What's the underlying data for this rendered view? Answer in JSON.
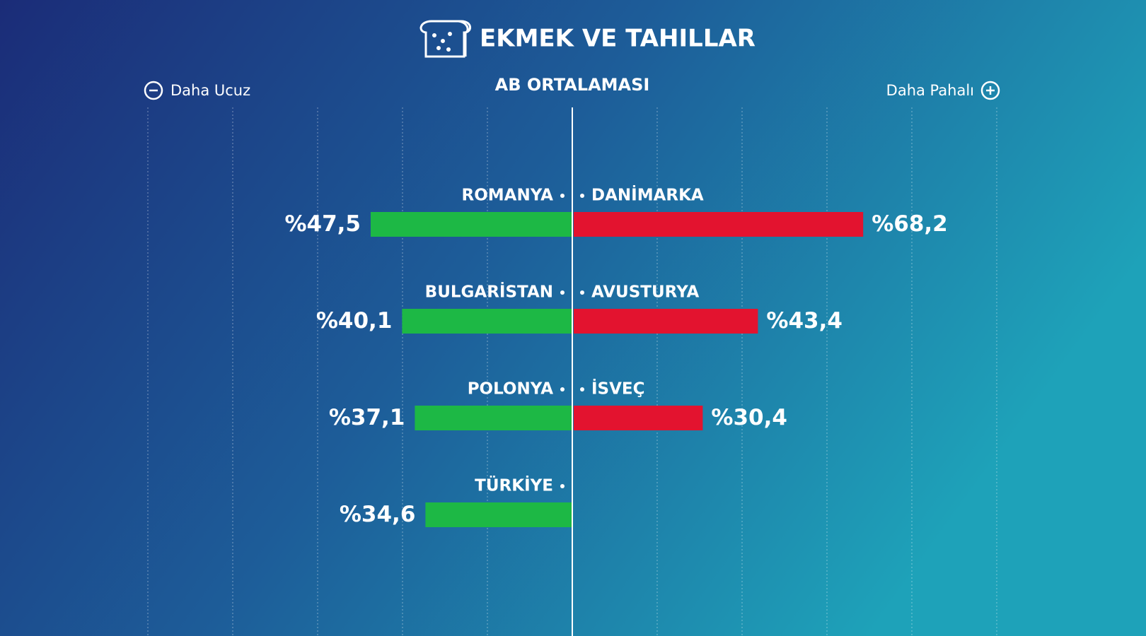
{
  "chart_data": {
    "type": "diverging-bar",
    "title": "EKMEK VE TAHILLAR",
    "center_label": "AB ORTALAMASI",
    "xlim": [
      0,
      100
    ],
    "xticks": [
      0,
      20,
      40,
      60,
      80,
      100
    ],
    "grid": true,
    "series": [
      {
        "name": "Daha Ucuz",
        "side": "left",
        "color": "#1db845",
        "categories": [
          "ROMANYA",
          "BULGARİSTAN",
          "POLONYA",
          "TÜRKİYE"
        ],
        "values": [
          47.5,
          40.1,
          37.1,
          34.6
        ],
        "value_labels": [
          "%47,5",
          "%40,1",
          "%37,1",
          "%34,6"
        ]
      },
      {
        "name": "Daha Pahalı",
        "side": "right",
        "color": "#e3132f",
        "categories": [
          "DANİMARKA",
          "AVUSTURYA",
          "İSVEÇ"
        ],
        "values": [
          68.2,
          43.4,
          30.4
        ],
        "value_labels": [
          "%68,2",
          "%43,4",
          "%30,4"
        ]
      }
    ]
  }
}
